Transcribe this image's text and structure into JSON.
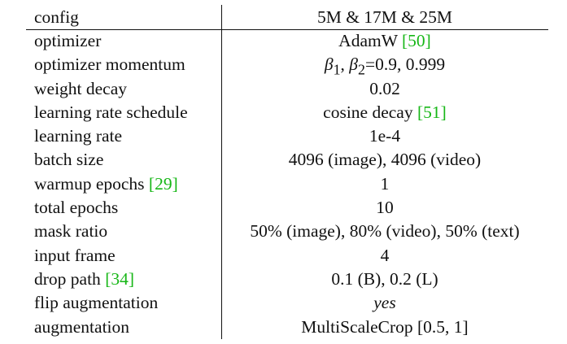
{
  "header": {
    "config": "config",
    "value": "5M & 17M & 25M"
  },
  "rows": [
    {
      "config": "optimizer",
      "value": "AdamW",
      "value_cite": "[50]"
    },
    {
      "config": "optimizer momentum",
      "beta1": "β",
      "beta1_sub": "1",
      "sep": ", ",
      "beta2": "β",
      "beta2_sub": "2",
      "value": "=0.9, 0.999"
    },
    {
      "config": "weight decay",
      "value": "0.02"
    },
    {
      "config": "learning rate schedule",
      "value": "cosine decay",
      "value_cite": "[51]"
    },
    {
      "config": "learning rate",
      "value": "1e-4"
    },
    {
      "config": "batch size",
      "value": "4096 (image), 4096 (video)"
    },
    {
      "config": "warmup epochs",
      "config_cite": "[29]",
      "value": "1"
    },
    {
      "config": "total epochs",
      "value": "10"
    },
    {
      "config": "mask ratio",
      "value": "50% (image), 80% (video), 50% (text)"
    },
    {
      "config": "input frame",
      "value": "4"
    },
    {
      "config": "drop path",
      "config_cite": "[34]",
      "value": "0.1 (B), 0.2 (L)"
    },
    {
      "config": "flip augmentation",
      "value": "yes"
    },
    {
      "config": "augmentation",
      "value": "MultiScaleCrop [0.5, 1]"
    }
  ],
  "colors": {
    "citation": "#17b717",
    "text": "#111111"
  }
}
